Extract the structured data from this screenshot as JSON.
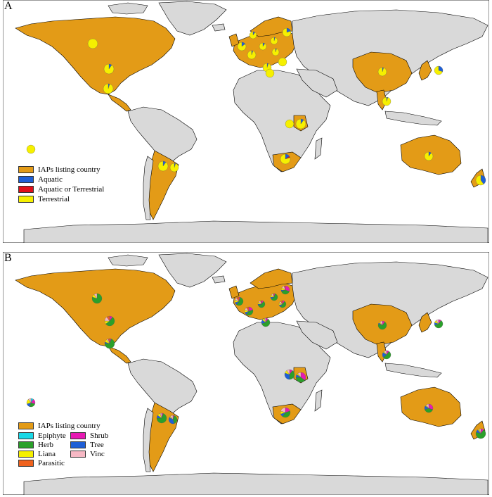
{
  "colors": {
    "ocean": "#ffffff",
    "land_other": "#d9d9d9",
    "listing_country": "#e39b17",
    "border": "#000000"
  },
  "panelA": {
    "letter": "A",
    "legend": [
      {
        "label": "IAPs listing country",
        "color": "#e39b17"
      },
      {
        "label": "Aquatic",
        "color": "#1f5fd6"
      },
      {
        "label": "Aquatic or Terrestrial",
        "color": "#e0101a"
      },
      {
        "label": "Terrestrial",
        "color": "#f6f000"
      }
    ]
  },
  "panelB": {
    "letter": "B",
    "legend_header": {
      "label": "IAPs listing country",
      "color": "#e39b17"
    },
    "legend": [
      {
        "label": "Epiphyte",
        "color": "#19d8e6"
      },
      {
        "label": "Shrub",
        "color": "#e81ab4"
      },
      {
        "label": "Herb",
        "color": "#2aa02a"
      },
      {
        "label": "Tree",
        "color": "#1f5fd6"
      },
      {
        "label": "Liana",
        "color": "#f6f000"
      },
      {
        "label": "Vinc",
        "color": "#f6b8c4"
      },
      {
        "label": "Parasitic",
        "color": "#f0621e"
      }
    ]
  }
}
